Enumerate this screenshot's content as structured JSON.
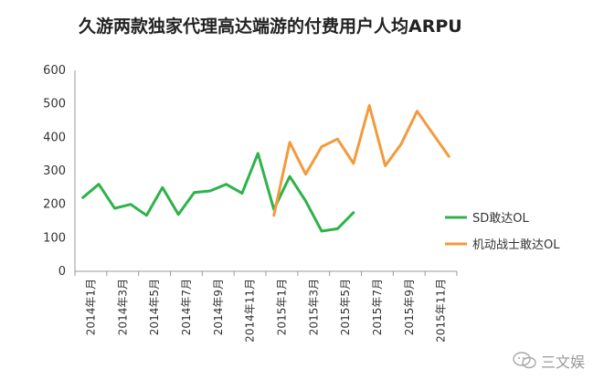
{
  "chart_data": {
    "type": "line",
    "title": "久游两款独家代理高达端游的付费用户人均ARPU",
    "xlabel": "",
    "ylabel": "",
    "ylim": [
      0,
      600
    ],
    "yticks": [
      0,
      100,
      200,
      300,
      400,
      500,
      600
    ],
    "categories": [
      "2014年1月",
      "2014年2月",
      "2014年3月",
      "2014年4月",
      "2014年5月",
      "2014年6月",
      "2014年7月",
      "2014年8月",
      "2014年9月",
      "2014年10月",
      "2014年11月",
      "2014年12月",
      "2015年1月",
      "2015年2月",
      "2015年3月",
      "2015年4月",
      "2015年5月",
      "2015年6月",
      "2015年7月",
      "2015年8月",
      "2015年9月",
      "2015年10月",
      "2015年11月",
      "2015年12月"
    ],
    "tick_labels": [
      "2014年1月",
      "2014年3月",
      "2014年5月",
      "2014年7月",
      "2014年9月",
      "2014年11月",
      "2015年1月",
      "2015年3月",
      "2015年5月",
      "2015年7月",
      "2015年9月",
      "2015年11月"
    ],
    "legend_position": "right",
    "series": [
      {
        "name": "SD敢达OL",
        "color": "#2db34a",
        "values": [
          220,
          260,
          188,
          200,
          167,
          250,
          170,
          235,
          240,
          260,
          233,
          352,
          185,
          283,
          210,
          120,
          127,
          175,
          null,
          null,
          null,
          null,
          null,
          null
        ]
      },
      {
        "name": "机动战士敢达OL",
        "color": "#f39a3c",
        "values": [
          null,
          null,
          null,
          null,
          null,
          null,
          null,
          null,
          null,
          null,
          null,
          null,
          167,
          385,
          290,
          372,
          395,
          322,
          495,
          315,
          380,
          478,
          410,
          343
        ]
      }
    ]
  },
  "watermark": {
    "text": "三文娱",
    "icon": "wechat-icon"
  }
}
